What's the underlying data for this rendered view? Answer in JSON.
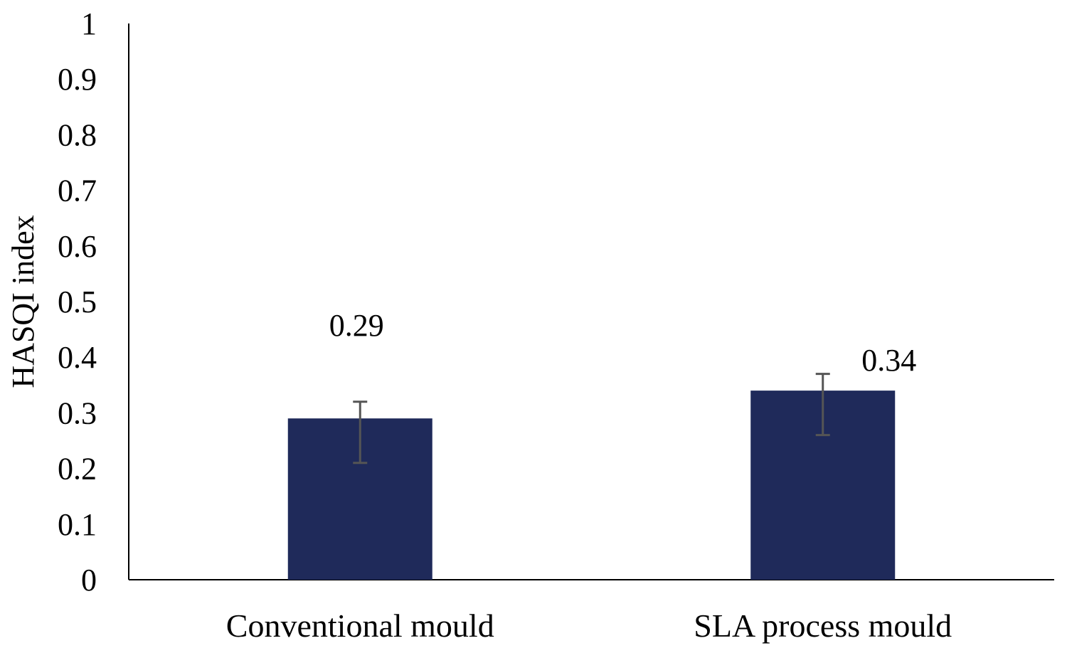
{
  "chart_data": {
    "type": "bar",
    "title": "",
    "xlabel": "",
    "ylabel": "HASQI index",
    "ylim": [
      0,
      1
    ],
    "yticks": [
      "0",
      "0.1",
      "0.2",
      "0.3",
      "0.4",
      "0.5",
      "0.6",
      "0.7",
      "0.8",
      "0.9",
      "1"
    ],
    "ytick_values": [
      0,
      0.1,
      0.2,
      0.3,
      0.4,
      0.5,
      0.6,
      0.7,
      0.8,
      0.9,
      1
    ],
    "categories": [
      "Conventional mould",
      "SLA process mould"
    ],
    "values": [
      0.29,
      0.34
    ],
    "data_labels": [
      "0.29",
      "0.34"
    ],
    "error_bars": [
      {
        "lower": 0.21,
        "upper": 0.32
      },
      {
        "lower": 0.26,
        "upper": 0.37
      }
    ],
    "grid": false,
    "legend": "none",
    "colors": {
      "bar": "#1f2a5a",
      "error": "#555555",
      "axis": "#000000"
    }
  }
}
